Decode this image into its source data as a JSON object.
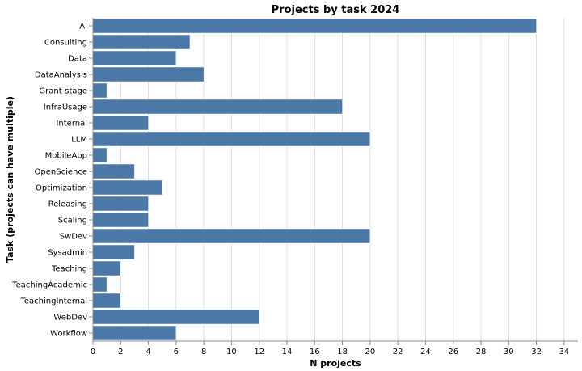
{
  "chart_data": {
    "type": "bar",
    "orientation": "horizontal",
    "title": "Projects by task 2024",
    "xlabel": "N projects",
    "ylabel": "Task (projects can have multiple)",
    "xlim": [
      0,
      35
    ],
    "x_ticks": [
      0,
      2,
      4,
      6,
      8,
      10,
      12,
      14,
      16,
      18,
      20,
      22,
      24,
      26,
      28,
      30,
      32,
      34
    ],
    "grid": true,
    "bar_color": "#4c78a8",
    "categories": [
      "AI",
      "Consulting",
      "Data",
      "DataAnalysis",
      "Grant-stage",
      "InfraUsage",
      "Internal",
      "LLM",
      "MobileApp",
      "OpenScience",
      "Optimization",
      "Releasing",
      "Scaling",
      "SwDev",
      "Sysadmin",
      "Teaching",
      "TeachingAcademic",
      "TeachingInternal",
      "WebDev",
      "Workflow"
    ],
    "values": [
      32,
      7,
      6,
      8,
      1,
      18,
      4,
      20,
      1,
      3,
      5,
      4,
      4,
      20,
      3,
      2,
      1,
      2,
      12,
      6
    ]
  }
}
